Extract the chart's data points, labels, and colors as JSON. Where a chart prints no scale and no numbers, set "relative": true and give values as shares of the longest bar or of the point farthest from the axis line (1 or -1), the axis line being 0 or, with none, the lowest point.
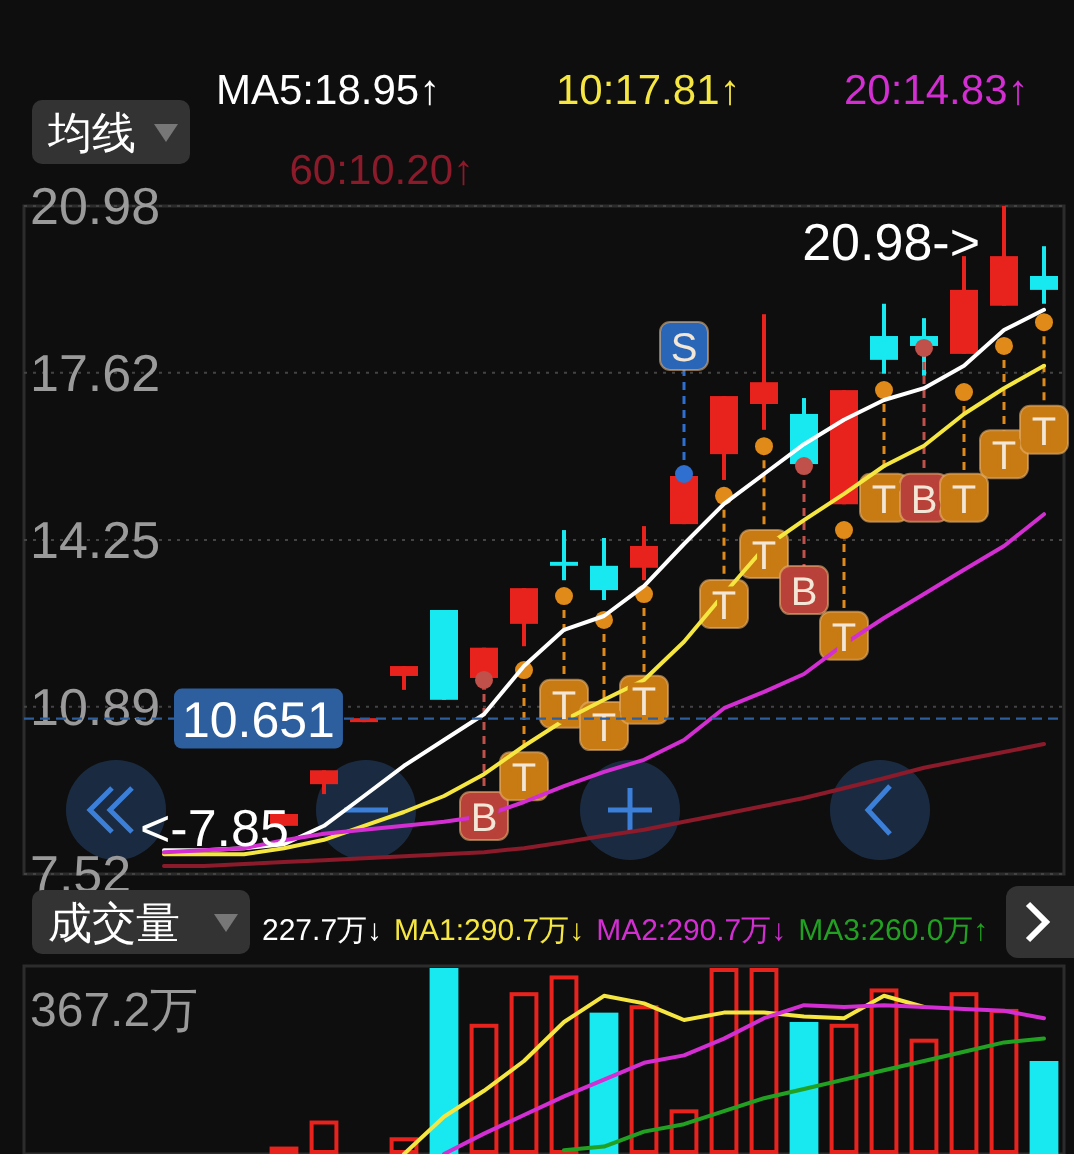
{
  "chart_data": [
    {
      "type": "candlestick",
      "legend_title": "均线",
      "legend": "top",
      "grid": "y",
      "categories": [
        null,
        null,
        null,
        null,
        null,
        null,
        null,
        null,
        null,
        null,
        null,
        null,
        null,
        null,
        null,
        null,
        null,
        null,
        null,
        null,
        null,
        null,
        null,
        null,
        null,
        null
      ],
      "ohlc": [
        null,
        null,
        null,
        null,
        null,
        null,
        [
          8.49,
          8.73,
          8.49,
          8.73
        ],
        [
          9.33,
          9.61,
          9.13,
          9.61
        ],
        [
          10.58,
          10.66,
          10.58,
          10.66
        ],
        [
          11.51,
          11.71,
          11.23,
          11.71
        ],
        [
          12.84,
          12.84,
          11.03,
          11.03
        ],
        [
          11.47,
          12.08,
          11.23,
          12.08
        ],
        [
          12.56,
          13.28,
          12.11,
          13.28
        ],
        [
          13.81,
          14.45,
          13.44,
          13.73
        ],
        [
          13.73,
          14.29,
          13.04,
          13.24
        ],
        [
          13.69,
          14.53,
          13.44,
          14.13
        ],
        [
          14.57,
          15.54,
          14.57,
          15.54
        ],
        [
          15.98,
          17.15,
          15.46,
          17.15
        ],
        [
          16.99,
          18.8,
          16.47,
          17.43
        ],
        [
          16.79,
          17.11,
          15.78,
          15.78
        ],
        [
          14.97,
          17.27,
          14.97,
          17.27
        ],
        [
          18.36,
          19.01,
          17.6,
          17.88
        ],
        [
          18.36,
          18.72,
          17.56,
          18.16
        ],
        [
          18.0,
          19.97,
          18.0,
          19.29
        ],
        [
          18.97,
          20.98,
          18.97,
          19.97
        ],
        [
          19.57,
          20.17,
          19.01,
          19.29
        ]
      ],
      "colors": [
        null,
        null,
        null,
        null,
        null,
        null,
        "#e8231e",
        "#e8231e",
        "#e8231e",
        "#e8231e",
        "#18e8f0",
        "#e8231e",
        "#e8231e",
        "#18e8f0",
        "#18e8f0",
        "#e8231e",
        "#e8231e",
        "#e8231e",
        "#e8231e",
        "#18e8f0",
        "#e8231e",
        "#18e8f0",
        "#18e8f0",
        "#e8231e",
        "#e8231e",
        "#18e8f0"
      ],
      "ylim": [
        7.52,
        20.98
      ],
      "yticks": [
        20.98,
        17.62,
        14.25,
        10.89,
        7.52
      ],
      "series": [
        {
          "type": "line",
          "name": "MA5:18.95↑",
          "color": "#ffffff",
          "values": [
            null,
            null,
            null,
            8.0,
            8.0,
            8.04,
            8.12,
            8.49,
            9.09,
            9.7,
            10.22,
            10.74,
            11.71,
            12.44,
            12.72,
            13.32,
            14.17,
            14.98,
            15.58,
            16.18,
            16.67,
            17.07,
            17.31,
            17.76,
            18.48,
            18.89
          ]
        },
        {
          "type": "line",
          "name": "10:17.81↑",
          "color": "#f5e642",
          "values": [
            null,
            null,
            null,
            7.92,
            7.92,
            7.92,
            8.04,
            8.21,
            8.49,
            8.77,
            9.09,
            9.53,
            10.1,
            10.62,
            11.03,
            11.43,
            12.2,
            13.16,
            14.09,
            14.65,
            15.18,
            15.74,
            16.15,
            16.79,
            17.31,
            17.76
          ]
        },
        {
          "type": "line",
          "name": "20:14.83↑",
          "color": "#d22ed2",
          "values": [
            null,
            null,
            null,
            7.96,
            8.0,
            8.04,
            8.2,
            8.33,
            8.41,
            8.49,
            8.57,
            8.69,
            8.97,
            9.29,
            9.58,
            9.82,
            10.22,
            10.86,
            11.19,
            11.55,
            12.15,
            12.68,
            13.16,
            13.65,
            14.13,
            14.77
          ]
        },
        {
          "type": "line",
          "name": "60:10.20↑",
          "color": "#8b1a2a",
          "values": [
            null,
            null,
            null,
            7.68,
            7.68,
            7.72,
            7.76,
            7.8,
            7.84,
            7.88,
            7.92,
            7.96,
            8.04,
            8.16,
            8.29,
            8.41,
            8.57,
            8.73,
            8.89,
            9.05,
            9.25,
            9.45,
            9.66,
            9.82,
            9.98,
            10.14
          ]
        },
        {
          "type": "scatter",
          "marker": "circle",
          "values": [
            null,
            null,
            null,
            null,
            null,
            null,
            null,
            null,
            null,
            null,
            null,
            11.43,
            11.63,
            13.12,
            12.64,
            13.16,
            15.58,
            15.14,
            16.14,
            15.74,
            14.45,
            17.27,
            18.12,
            17.23,
            18.16,
            18.64
          ],
          "colors": [
            null,
            null,
            null,
            null,
            null,
            null,
            null,
            null,
            null,
            null,
            null,
            "#c0504a",
            "#e08a1a",
            "#e08a1a",
            "#e08a1a",
            "#e08a1a",
            "#2f6fd0",
            "#e08a1a",
            "#e08a1a",
            "#c0504a",
            "#e08a1a",
            "#e08a1a",
            "#c0504a",
            "#e08a1a",
            "#e08a1a",
            "#e08a1a"
          ]
        },
        {
          "type": "scatter",
          "marker": "square",
          "values": [
            null,
            null,
            null,
            null,
            null,
            null,
            null,
            null,
            null,
            null,
            null,
            8.69,
            9.49,
            10.95,
            10.5,
            11.03,
            18.16,
            12.96,
            13.97,
            13.24,
            12.32,
            15.1,
            15.1,
            15.1,
            15.98,
            16.47
          ],
          "value_labels": [
            null,
            null,
            null,
            null,
            null,
            null,
            null,
            null,
            null,
            null,
            null,
            "B",
            "T",
            "T",
            "T",
            "T",
            "S",
            "T",
            "T",
            "B",
            "T",
            "T",
            "B",
            "T",
            "T",
            "T"
          ],
          "colors": [
            null,
            null,
            null,
            null,
            null,
            null,
            null,
            null,
            null,
            null,
            null,
            "#b8413a",
            "#c77b12",
            "#c77b12",
            "#c77b12",
            "#c77b12",
            "#2a66b8",
            "#c77b12",
            "#c77b12",
            "#b8413a",
            "#c77b12",
            "#c77b12",
            "#b8413a",
            "#c77b12",
            "#c77b12",
            "#c77b12"
          ]
        }
      ],
      "ref_lines": [
        {
          "axis": "y",
          "value": 10.651,
          "label": "10.651",
          "color": "#2d5f9e",
          "line_style": "dashed"
        }
      ],
      "annotations": [
        "20.98->",
        "<-7.85"
      ]
    },
    {
      "type": "bar",
      "relative": true,
      "legend_title": "成交量",
      "legend": "top",
      "categories": [
        null,
        null,
        null,
        null,
        null,
        null,
        null,
        null,
        null,
        null,
        null,
        null,
        null,
        null,
        null,
        null,
        null,
        null,
        null,
        null,
        null,
        null,
        null,
        null,
        null,
        null
      ],
      "series": [
        {
          "type": "bar",
          "name": "227.7万↓",
          "values": [
            null,
            null,
            null,
            null,
            null,
            null,
            0.04,
            0.18,
            null,
            0.09,
            1,
            0.7,
            0.87,
            0.96,
            0.76,
            0.8,
            0.24,
            1,
            1,
            0.71,
            0.7,
            0.89,
            0.62,
            0.87,
            0.78,
            0.5
          ],
          "colors": [
            null,
            null,
            null,
            null,
            null,
            null,
            "#e8231e",
            "#e8231e",
            null,
            "#e8231e",
            "#18e8f0",
            "#e8231e",
            "#e8231e",
            "#e8231e",
            "#18e8f0",
            "#e8231e",
            "#e8231e",
            "#e8231e",
            "#e8231e",
            "#18e8f0",
            "#e8231e",
            "#e8231e",
            "#e8231e",
            "#e8231e",
            "#e8231e",
            "#18e8f0"
          ]
        },
        {
          "type": "line",
          "name": "MA1:290.7万↓",
          "color": "#f5e642",
          "values": [
            null,
            null,
            null,
            null,
            null,
            null,
            null,
            null,
            null,
            0.0,
            0.2,
            0.34,
            0.5,
            0.71,
            0.85,
            0.81,
            0.72,
            0.76,
            0.76,
            0.74,
            0.73,
            0.85,
            0.79,
            null,
            null,
            null
          ]
        },
        {
          "type": "line",
          "name": "MA2:290.7万↓",
          "color": "#d22ed2",
          "values": [
            null,
            null,
            null,
            null,
            null,
            null,
            null,
            null,
            null,
            null,
            0.0,
            0.11,
            0.21,
            0.31,
            0.4,
            0.49,
            0.53,
            0.62,
            0.73,
            0.8,
            0.79,
            0.8,
            0.79,
            0.78,
            0.77,
            0.73
          ]
        },
        {
          "type": "line",
          "name": "MA3:260.0万↑",
          "color": "#22a022",
          "values": [
            null,
            null,
            null,
            null,
            null,
            null,
            null,
            null,
            null,
            null,
            null,
            null,
            null,
            0.02,
            0.04,
            0.12,
            0.16,
            0.23,
            0.3,
            0.35,
            0.4,
            0.45,
            0.5,
            0.55,
            0.6,
            0.62
          ]
        }
      ],
      "annotations": [
        "367.2万"
      ]
    }
  ]
}
